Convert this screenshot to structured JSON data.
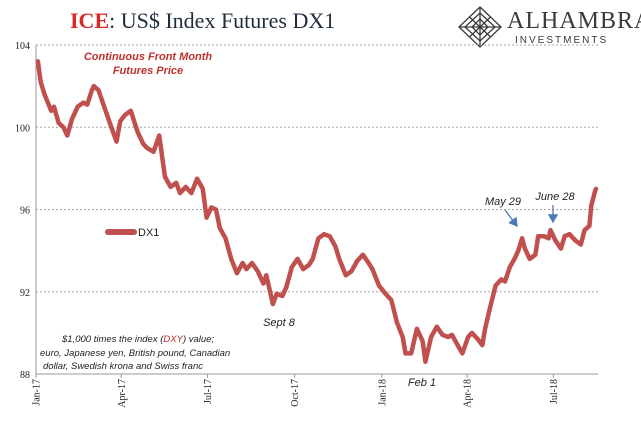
{
  "header": {
    "title_ice": "ICE",
    "title_rest": ": US$ Index Futures DX1"
  },
  "logo": {
    "name": "ALHAMBRA",
    "sub": "INVESTMENTS",
    "icon": "geometric-diamond-icon"
  },
  "colors": {
    "series": "#c0504d",
    "title_ice": "#d42a2a",
    "subtitle": "#c0302c",
    "annotation_dxy": "#c0302c",
    "arrow": "#4a7ab8",
    "grid": "#a6a6a6"
  },
  "chart_data": {
    "type": "line",
    "subtitle_line1": "Continuous  Front Month",
    "subtitle_line2": "Futures Price",
    "ylim": [
      88,
      104
    ],
    "y_ticks": [
      "88",
      "92",
      "96",
      "100",
      "104"
    ],
    "grid": true,
    "legend": {
      "position": "middle-left",
      "label": "DX1"
    },
    "x_tick_labels": [
      {
        "date": "2017-01-01",
        "label": "Jan-17"
      },
      {
        "date": "2017-04-01",
        "label": "Apr-17"
      },
      {
        "date": "2017-07-01",
        "label": "Jul-17"
      },
      {
        "date": "2017-10-01",
        "label": "Oct-17"
      },
      {
        "date": "2018-01-01",
        "label": "Jan-18"
      },
      {
        "date": "2018-04-01",
        "label": "Apr-18"
      },
      {
        "date": "2018-07-01",
        "label": "Jul-18"
      }
    ],
    "series": [
      {
        "name": "DX1",
        "points": [
          [
            "2017-01-03",
            103.2
          ],
          [
            "2017-01-06",
            102.2
          ],
          [
            "2017-01-10",
            101.6
          ],
          [
            "2017-01-17",
            100.8
          ],
          [
            "2017-01-20",
            101.0
          ],
          [
            "2017-01-25",
            100.2
          ],
          [
            "2017-01-30",
            100.0
          ],
          [
            "2017-02-03",
            99.6
          ],
          [
            "2017-02-08",
            100.4
          ],
          [
            "2017-02-14",
            101.0
          ],
          [
            "2017-02-20",
            101.2
          ],
          [
            "2017-02-24",
            101.1
          ],
          [
            "2017-03-01",
            101.8
          ],
          [
            "2017-03-03",
            102.0
          ],
          [
            "2017-03-08",
            101.8
          ],
          [
            "2017-03-14",
            101.0
          ],
          [
            "2017-03-20",
            100.2
          ],
          [
            "2017-03-27",
            99.3
          ],
          [
            "2017-03-31",
            100.3
          ],
          [
            "2017-04-05",
            100.6
          ],
          [
            "2017-04-11",
            100.8
          ],
          [
            "2017-04-18",
            99.8
          ],
          [
            "2017-04-24",
            99.2
          ],
          [
            "2017-04-28",
            99.0
          ],
          [
            "2017-05-05",
            98.8
          ],
          [
            "2017-05-11",
            99.6
          ],
          [
            "2017-05-17",
            97.6
          ],
          [
            "2017-05-23",
            97.1
          ],
          [
            "2017-05-29",
            97.3
          ],
          [
            "2017-06-02",
            96.8
          ],
          [
            "2017-06-08",
            97.1
          ],
          [
            "2017-06-14",
            96.8
          ],
          [
            "2017-06-20",
            97.5
          ],
          [
            "2017-06-26",
            97.0
          ],
          [
            "2017-06-30",
            95.6
          ],
          [
            "2017-07-05",
            96.1
          ],
          [
            "2017-07-10",
            96.0
          ],
          [
            "2017-07-14",
            95.1
          ],
          [
            "2017-07-20",
            94.6
          ],
          [
            "2017-07-26",
            93.6
          ],
          [
            "2017-08-01",
            92.9
          ],
          [
            "2017-08-07",
            93.4
          ],
          [
            "2017-08-11",
            93.1
          ],
          [
            "2017-08-17",
            93.4
          ],
          [
            "2017-08-23",
            93.0
          ],
          [
            "2017-08-29",
            92.4
          ],
          [
            "2017-09-01",
            92.8
          ],
          [
            "2017-09-08",
            91.4
          ],
          [
            "2017-09-12",
            91.9
          ],
          [
            "2017-09-18",
            91.8
          ],
          [
            "2017-09-22",
            92.2
          ],
          [
            "2017-09-28",
            93.2
          ],
          [
            "2017-10-04",
            93.6
          ],
          [
            "2017-10-10",
            93.1
          ],
          [
            "2017-10-16",
            93.3
          ],
          [
            "2017-10-20",
            93.6
          ],
          [
            "2017-10-26",
            94.6
          ],
          [
            "2017-11-01",
            94.8
          ],
          [
            "2017-11-07",
            94.7
          ],
          [
            "2017-11-13",
            94.2
          ],
          [
            "2017-11-17",
            93.6
          ],
          [
            "2017-11-24",
            92.8
          ],
          [
            "2017-11-30",
            93.0
          ],
          [
            "2017-12-06",
            93.5
          ],
          [
            "2017-12-12",
            93.8
          ],
          [
            "2017-12-18",
            93.4
          ],
          [
            "2017-12-22",
            93.1
          ],
          [
            "2017-12-29",
            92.3
          ],
          [
            "2018-01-05",
            91.9
          ],
          [
            "2018-01-11",
            91.6
          ],
          [
            "2018-01-17",
            90.5
          ],
          [
            "2018-01-23",
            89.8
          ],
          [
            "2018-01-26",
            89.0
          ],
          [
            "2018-02-01",
            89.0
          ],
          [
            "2018-02-07",
            90.2
          ],
          [
            "2018-02-13",
            89.6
          ],
          [
            "2018-02-16",
            88.6
          ],
          [
            "2018-02-22",
            89.8
          ],
          [
            "2018-02-28",
            90.3
          ],
          [
            "2018-03-06",
            89.9
          ],
          [
            "2018-03-12",
            89.8
          ],
          [
            "2018-03-16",
            89.9
          ],
          [
            "2018-03-22",
            89.4
          ],
          [
            "2018-03-27",
            89.0
          ],
          [
            "2018-04-02",
            89.8
          ],
          [
            "2018-04-06",
            90.0
          ],
          [
            "2018-04-12",
            89.7
          ],
          [
            "2018-04-17",
            89.4
          ],
          [
            "2018-04-20",
            90.2
          ],
          [
            "2018-04-25",
            91.2
          ],
          [
            "2018-05-01",
            92.3
          ],
          [
            "2018-05-07",
            92.6
          ],
          [
            "2018-05-11",
            92.5
          ],
          [
            "2018-05-16",
            93.2
          ],
          [
            "2018-05-21",
            93.6
          ],
          [
            "2018-05-25",
            94.0
          ],
          [
            "2018-05-29",
            94.6
          ],
          [
            "2018-06-01",
            94.1
          ],
          [
            "2018-06-06",
            93.6
          ],
          [
            "2018-06-12",
            93.8
          ],
          [
            "2018-06-15",
            94.7
          ],
          [
            "2018-06-21",
            94.7
          ],
          [
            "2018-06-26",
            94.6
          ],
          [
            "2018-06-28",
            95.0
          ],
          [
            "2018-07-03",
            94.5
          ],
          [
            "2018-07-09",
            94.1
          ],
          [
            "2018-07-13",
            94.7
          ],
          [
            "2018-07-18",
            94.8
          ],
          [
            "2018-07-24",
            94.5
          ],
          [
            "2018-07-30",
            94.3
          ],
          [
            "2018-08-03",
            95.0
          ],
          [
            "2018-08-08",
            95.2
          ],
          [
            "2018-08-10",
            96.2
          ],
          [
            "2018-08-14",
            96.9
          ],
          [
            "2018-08-15",
            97.0
          ]
        ]
      }
    ],
    "annotations": [
      {
        "text": "May 29",
        "arrow": true,
        "date": "2018-05-29",
        "value": 94.6
      },
      {
        "text": "June 28",
        "arrow": true,
        "date": "2018-06-28",
        "value": 95.0
      },
      {
        "text": "Sept 8",
        "arrow": false
      },
      {
        "text": "Feb 1",
        "arrow": false
      }
    ],
    "note": {
      "line1_before": "$1,000 times the index (",
      "line1_highlight": "DXY",
      "line1_after": ") value;",
      "line2": "euro, Japanese yen, British pound, Canadian",
      "line3": "dollar, Swedish krona and Swiss franc"
    }
  }
}
